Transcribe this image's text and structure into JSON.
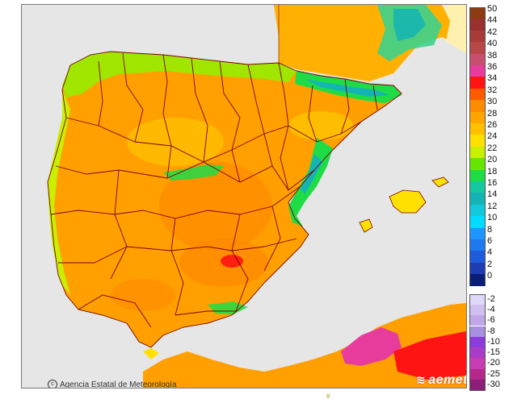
{
  "credit": {
    "text": "Agencia Estatal de Meteorología"
  },
  "logo": {
    "text": "aemet"
  },
  "legend": {
    "positive": [
      {
        "label": "50",
        "color": "#8b3a12"
      },
      {
        "label": "44",
        "color": "#9a3030"
      },
      {
        "label": "42",
        "color": "#a83a3a"
      },
      {
        "label": "40",
        "color": "#b84848"
      },
      {
        "label": "38",
        "color": "#c8506e"
      },
      {
        "label": "36",
        "color": "#e83c9c"
      },
      {
        "label": "34",
        "color": "#ff1414"
      },
      {
        "label": "32",
        "color": "#ff5a00"
      },
      {
        "label": "30",
        "color": "#ff8c00"
      },
      {
        "label": "28",
        "color": "#ffa500"
      },
      {
        "label": "26",
        "color": "#ffc000"
      },
      {
        "label": "24",
        "color": "#ffe000"
      },
      {
        "label": "22",
        "color": "#c8f000"
      },
      {
        "label": "20",
        "color": "#64e600"
      },
      {
        "label": "18",
        "color": "#1edc46"
      },
      {
        "label": "16",
        "color": "#14c8a0"
      },
      {
        "label": "14",
        "color": "#14b4b4"
      },
      {
        "label": "12",
        "color": "#14c8dc"
      },
      {
        "label": "10",
        "color": "#00dcff"
      },
      {
        "label": "8",
        "color": "#1e96ff"
      },
      {
        "label": "6",
        "color": "#1e78f0"
      },
      {
        "label": "4",
        "color": "#1e5adc"
      },
      {
        "label": "2",
        "color": "#1e3cb4"
      },
      {
        "label": "0",
        "color": "#0a1e78"
      }
    ],
    "negative": [
      {
        "label": "-2",
        "color": "#e0d8f8"
      },
      {
        "label": "-4",
        "color": "#d0c0f0"
      },
      {
        "label": "-6",
        "color": "#c0a8e8"
      },
      {
        "label": "-8",
        "color": "#a890e0"
      },
      {
        "label": "-10",
        "color": "#8c3cdc"
      },
      {
        "label": "-15",
        "color": "#a83cc8"
      },
      {
        "label": "-20",
        "color": "#c83cb4"
      },
      {
        "label": "-25",
        "color": "#b4288c"
      },
      {
        "label": "-30",
        "color": "#8c1e78"
      }
    ]
  }
}
